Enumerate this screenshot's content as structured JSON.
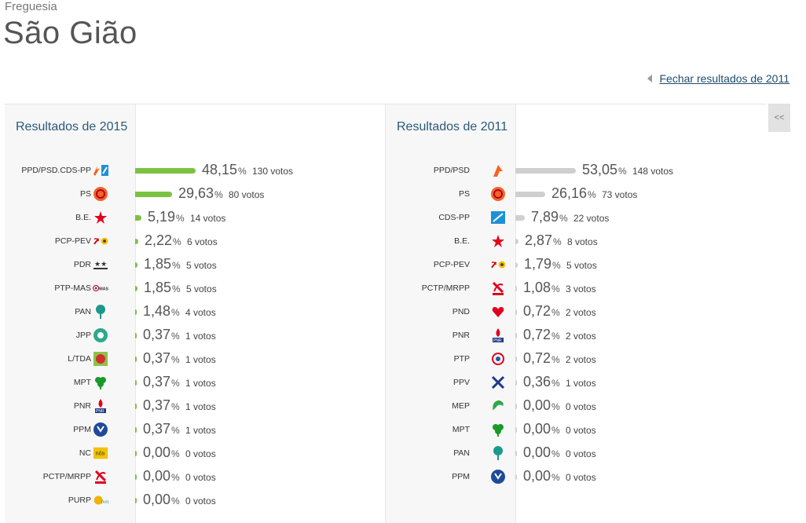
{
  "header": {
    "kicker": "Freguesia",
    "title": "São Gião"
  },
  "close_link": "Fechar resultados de 2011",
  "collapse_label": "<<",
  "colors": {
    "bar_2015": "#7cc242",
    "bar_2011": "#cfcfcf",
    "title_blue": "#2a5a7a"
  },
  "results_2015": {
    "title": "Resultados de 2015",
    "rows": [
      {
        "party": "PPD/PSD.CDS-PP",
        "pct": "48,15",
        "pct_value": 48.15,
        "votes": "130 votos",
        "icon": "ppd-cds-icon"
      },
      {
        "party": "PS",
        "pct": "29,63",
        "pct_value": 29.63,
        "votes": "80 votos",
        "icon": "ps-icon"
      },
      {
        "party": "B.E.",
        "pct": "5,19",
        "pct_value": 5.19,
        "votes": "14 votos",
        "icon": "be-star-icon"
      },
      {
        "party": "PCP-PEV",
        "pct": "2,22",
        "pct_value": 2.22,
        "votes": "6 votos",
        "icon": "pcp-pev-icon"
      },
      {
        "party": "PDR",
        "pct": "1,85",
        "pct_value": 1.85,
        "votes": "5 votos",
        "icon": "pdr-stars-icon"
      },
      {
        "party": "PTP-MAS",
        "pct": "1,85",
        "pct_value": 1.85,
        "votes": "5 votos",
        "icon": "ptp-mas-icon"
      },
      {
        "party": "PAN",
        "pct": "1,48",
        "pct_value": 1.48,
        "votes": "4 votos",
        "icon": "pan-tree-icon"
      },
      {
        "party": "JPP",
        "pct": "0,37",
        "pct_value": 0.37,
        "votes": "1 votos",
        "icon": "jpp-icon"
      },
      {
        "party": "L/TDA",
        "pct": "0,37",
        "pct_value": 0.37,
        "votes": "1 votos",
        "icon": "livre-icon"
      },
      {
        "party": "MPT",
        "pct": "0,37",
        "pct_value": 0.37,
        "votes": "1 votos",
        "icon": "mpt-clover-icon"
      },
      {
        "party": "PNR",
        "pct": "0,37",
        "pct_value": 0.37,
        "votes": "1 votos",
        "icon": "pnr-flame-icon"
      },
      {
        "party": "PPM",
        "pct": "0,37",
        "pct_value": 0.37,
        "votes": "1 votos",
        "icon": "ppm-icon"
      },
      {
        "party": "NC",
        "pct": "0,00",
        "pct_value": 0.0,
        "votes": "0 votos",
        "icon": "nc-icon"
      },
      {
        "party": "PCTP/MRPP",
        "pct": "0,00",
        "pct_value": 0.0,
        "votes": "0 votos",
        "icon": "pctp-mrpp-icon"
      },
      {
        "party": "PURP",
        "pct": "0,00",
        "pct_value": 0.0,
        "votes": "0 votos",
        "icon": "purp-icon"
      }
    ]
  },
  "results_2011": {
    "title": "Resultados de 2011",
    "rows": [
      {
        "party": "PPD/PSD",
        "pct": "53,05",
        "pct_value": 53.05,
        "votes": "148 votos",
        "icon": "ppd-psd-arrow-icon"
      },
      {
        "party": "PS",
        "pct": "26,16",
        "pct_value": 26.16,
        "votes": "73 votos",
        "icon": "ps-icon"
      },
      {
        "party": "CDS-PP",
        "pct": "7,89",
        "pct_value": 7.89,
        "votes": "22 votos",
        "icon": "cds-pp-icon"
      },
      {
        "party": "B.E.",
        "pct": "2,87",
        "pct_value": 2.87,
        "votes": "8 votos",
        "icon": "be-star-icon"
      },
      {
        "party": "PCP-PEV",
        "pct": "1,79",
        "pct_value": 1.79,
        "votes": "5 votos",
        "icon": "pcp-pev-icon"
      },
      {
        "party": "PCTP/MRPP",
        "pct": "1,08",
        "pct_value": 1.08,
        "votes": "3 votos",
        "icon": "pctp-mrpp-icon"
      },
      {
        "party": "PND",
        "pct": "0,72",
        "pct_value": 0.72,
        "votes": "2 votos",
        "icon": "pnd-heart-icon"
      },
      {
        "party": "PNR",
        "pct": "0,72",
        "pct_value": 0.72,
        "votes": "2 votos",
        "icon": "pnr-flame-icon"
      },
      {
        "party": "PTP",
        "pct": "0,72",
        "pct_value": 0.72,
        "votes": "2 votos",
        "icon": "ptp-icon"
      },
      {
        "party": "PPV",
        "pct": "0,36",
        "pct_value": 0.36,
        "votes": "1 votos",
        "icon": "ppv-cross-icon"
      },
      {
        "party": "MEP",
        "pct": "0,00",
        "pct_value": 0.0,
        "votes": "0 votos",
        "icon": "mep-icon"
      },
      {
        "party": "MPT",
        "pct": "0,00",
        "pct_value": 0.0,
        "votes": "0 votos",
        "icon": "mpt-clover-icon"
      },
      {
        "party": "PAN",
        "pct": "0,00",
        "pct_value": 0.0,
        "votes": "0 votos",
        "icon": "pan-tree-icon"
      },
      {
        "party": "PPM",
        "pct": "0,00",
        "pct_value": 0.0,
        "votes": "0 votos",
        "icon": "ppm-icon"
      }
    ]
  },
  "pct_symbol": "%"
}
